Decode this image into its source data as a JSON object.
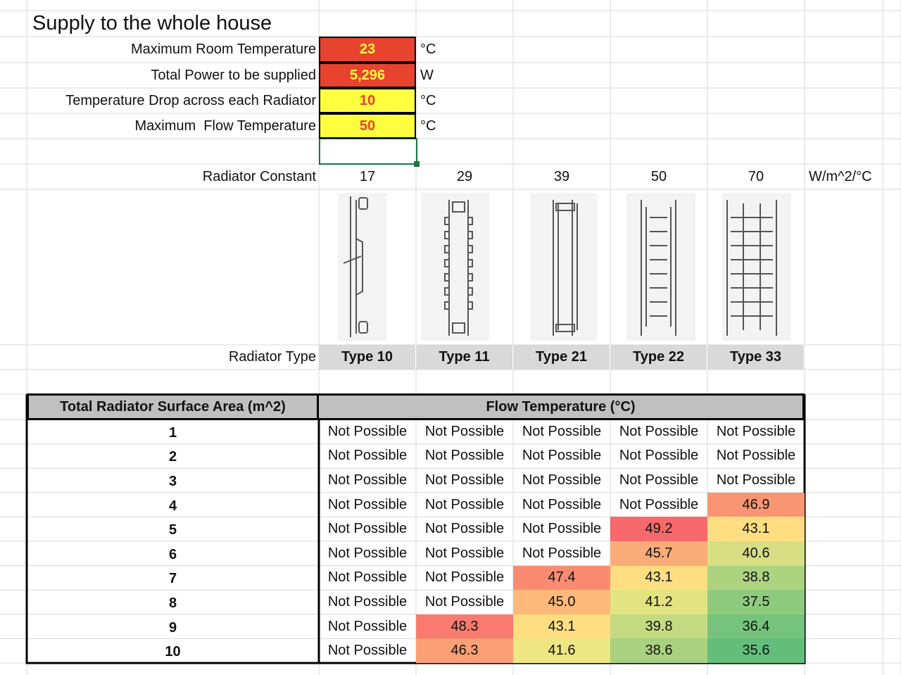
{
  "title": "Supply to the whole house",
  "inputs": [
    {
      "label": "Maximum Room Temperature",
      "value": "23",
      "unit": "°C"
    },
    {
      "label": "Total Power to be supplied",
      "value": "5,296",
      "unit": "W"
    },
    {
      "label": "Temperature Drop across each Radiator",
      "value": "10",
      "unit": "°C"
    },
    {
      "label": "Maximum  Flow Temperature",
      "value": "50",
      "unit": "°C"
    }
  ],
  "radiator_constant": {
    "label": "Radiator Constant",
    "values": [
      "17",
      "29",
      "39",
      "50",
      "70"
    ],
    "unit": "W/m^2/°C"
  },
  "radiator_type": {
    "label": "Radiator Type",
    "values": [
      "Type 10",
      "Type 11",
      "Type 21",
      "Type 22",
      "Type 33"
    ]
  },
  "table": {
    "header": [
      "Total Radiator Surface Area (m^2)",
      "Flow Temperature (°C)"
    ],
    "rows": [
      [
        "1",
        "Not Possible",
        "Not Possible",
        "Not Possible",
        "Not Possible",
        "Not Possible"
      ],
      [
        "2",
        "Not Possible",
        "Not Possible",
        "Not Possible",
        "Not Possible",
        "Not Possible"
      ],
      [
        "3",
        "Not Possible",
        "Not Possible",
        "Not Possible",
        "Not Possible",
        "Not Possible"
      ],
      [
        "4",
        "Not Possible",
        "Not Possible",
        "Not Possible",
        "Not Possible",
        "46.9"
      ],
      [
        "5",
        "Not Possible",
        "Not Possible",
        "Not Possible",
        "49.2",
        "43.1"
      ],
      [
        "6",
        "Not Possible",
        "Not Possible",
        "Not Possible",
        "45.7",
        "40.6"
      ],
      [
        "7",
        "Not Possible",
        "Not Possible",
        "47.4",
        "43.1",
        "38.8"
      ],
      [
        "8",
        "Not Possible",
        "Not Possible",
        "45.0",
        "41.2",
        "37.5"
      ],
      [
        "9",
        "Not Possible",
        "48.3",
        "43.1",
        "39.8",
        "36.4"
      ],
      [
        "10",
        "Not Possible",
        "46.3",
        "41.6",
        "38.6",
        "35.6"
      ]
    ]
  }
}
